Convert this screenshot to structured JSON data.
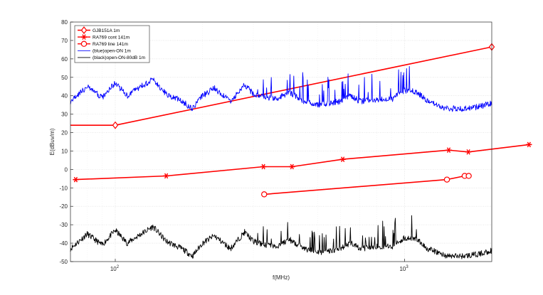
{
  "chart_data": {
    "type": "line",
    "title": "",
    "xlabel": "f(MHz)",
    "ylabel": "E(dBuv/m)",
    "x_scale": "log",
    "xlim": [
      70,
      2000
    ],
    "ylim": [
      -50,
      80
    ],
    "x_ticks": [
      100,
      1000
    ],
    "x_tick_labels": [
      {
        "base": "10",
        "exp": "2"
      },
      {
        "base": "10",
        "exp": "3"
      }
    ],
    "y_ticks": [
      -50,
      -40,
      -30,
      -20,
      -10,
      0,
      10,
      20,
      30,
      40,
      50,
      60,
      70,
      80
    ],
    "y_tick_labels": [
      "-50",
      "-40",
      "-30",
      "-20",
      "-10",
      "0",
      "10",
      "20",
      "30",
      "40",
      "50",
      "60",
      "70",
      "80"
    ],
    "grid": true,
    "legend_position": "top-left",
    "series": [
      {
        "name": "GJB151A 1m",
        "color": "#ff0000",
        "marker": "diamond",
        "x": [
          70,
          100,
          2000
        ],
        "y": [
          24,
          24,
          66.5
        ]
      },
      {
        "name": "RA769 cont 141m",
        "color": "#ff0000",
        "marker": "asterisk",
        "x": [
          73,
          150,
          325,
          408,
          611,
          1420,
          1660,
          2690
        ],
        "y": [
          -5.5,
          -3.5,
          1.5,
          1.5,
          5.5,
          10.5,
          9.5,
          13.5
        ]
      },
      {
        "name": "RA769 line 141m",
        "color": "#ff0000",
        "marker": "circle",
        "x": [
          327,
          1400,
          1612,
          1665
        ],
        "y": [
          -13.5,
          -5.5,
          -3.5,
          -3.5
        ]
      },
      {
        "name": "(blue)open-ON 1m",
        "color": "#0000ff",
        "marker": "none",
        "x": [
          70,
          80,
          90,
          100,
          110,
          120,
          135,
          150,
          170,
          185,
          200,
          220,
          250,
          280,
          300,
          330,
          360,
          400,
          450,
          500,
          550,
          600,
          650,
          700,
          800,
          900,
          1000,
          1100,
          1200,
          1400,
          1600,
          1800,
          2000
        ],
        "y": [
          37,
          45,
          39,
          47,
          40,
          44,
          49,
          41,
          37,
          33,
          40,
          44,
          37,
          46,
          41,
          39,
          38,
          42,
          37,
          35,
          36,
          37,
          40,
          37,
          38,
          38,
          43,
          42,
          37,
          33,
          33,
          34,
          36
        ]
      },
      {
        "name": "(black)open-ON-80dB 1m",
        "color": "#000000",
        "marker": "none",
        "x": [
          70,
          80,
          90,
          100,
          110,
          120,
          135,
          150,
          170,
          185,
          200,
          220,
          250,
          280,
          300,
          330,
          360,
          400,
          450,
          500,
          550,
          600,
          650,
          700,
          800,
          900,
          1000,
          1100,
          1200,
          1400,
          1600,
          1800,
          2000
        ],
        "y": [
          -43,
          -35,
          -41,
          -33,
          -40,
          -36,
          -31,
          -39,
          -43,
          -47,
          -40,
          -36,
          -43,
          -34,
          -39,
          -41,
          -42,
          -38,
          -43,
          -45,
          -44,
          -43,
          -40,
          -43,
          -42,
          -42,
          -37,
          -38,
          -43,
          -47,
          -47,
          -46,
          -44
        ]
      }
    ]
  }
}
